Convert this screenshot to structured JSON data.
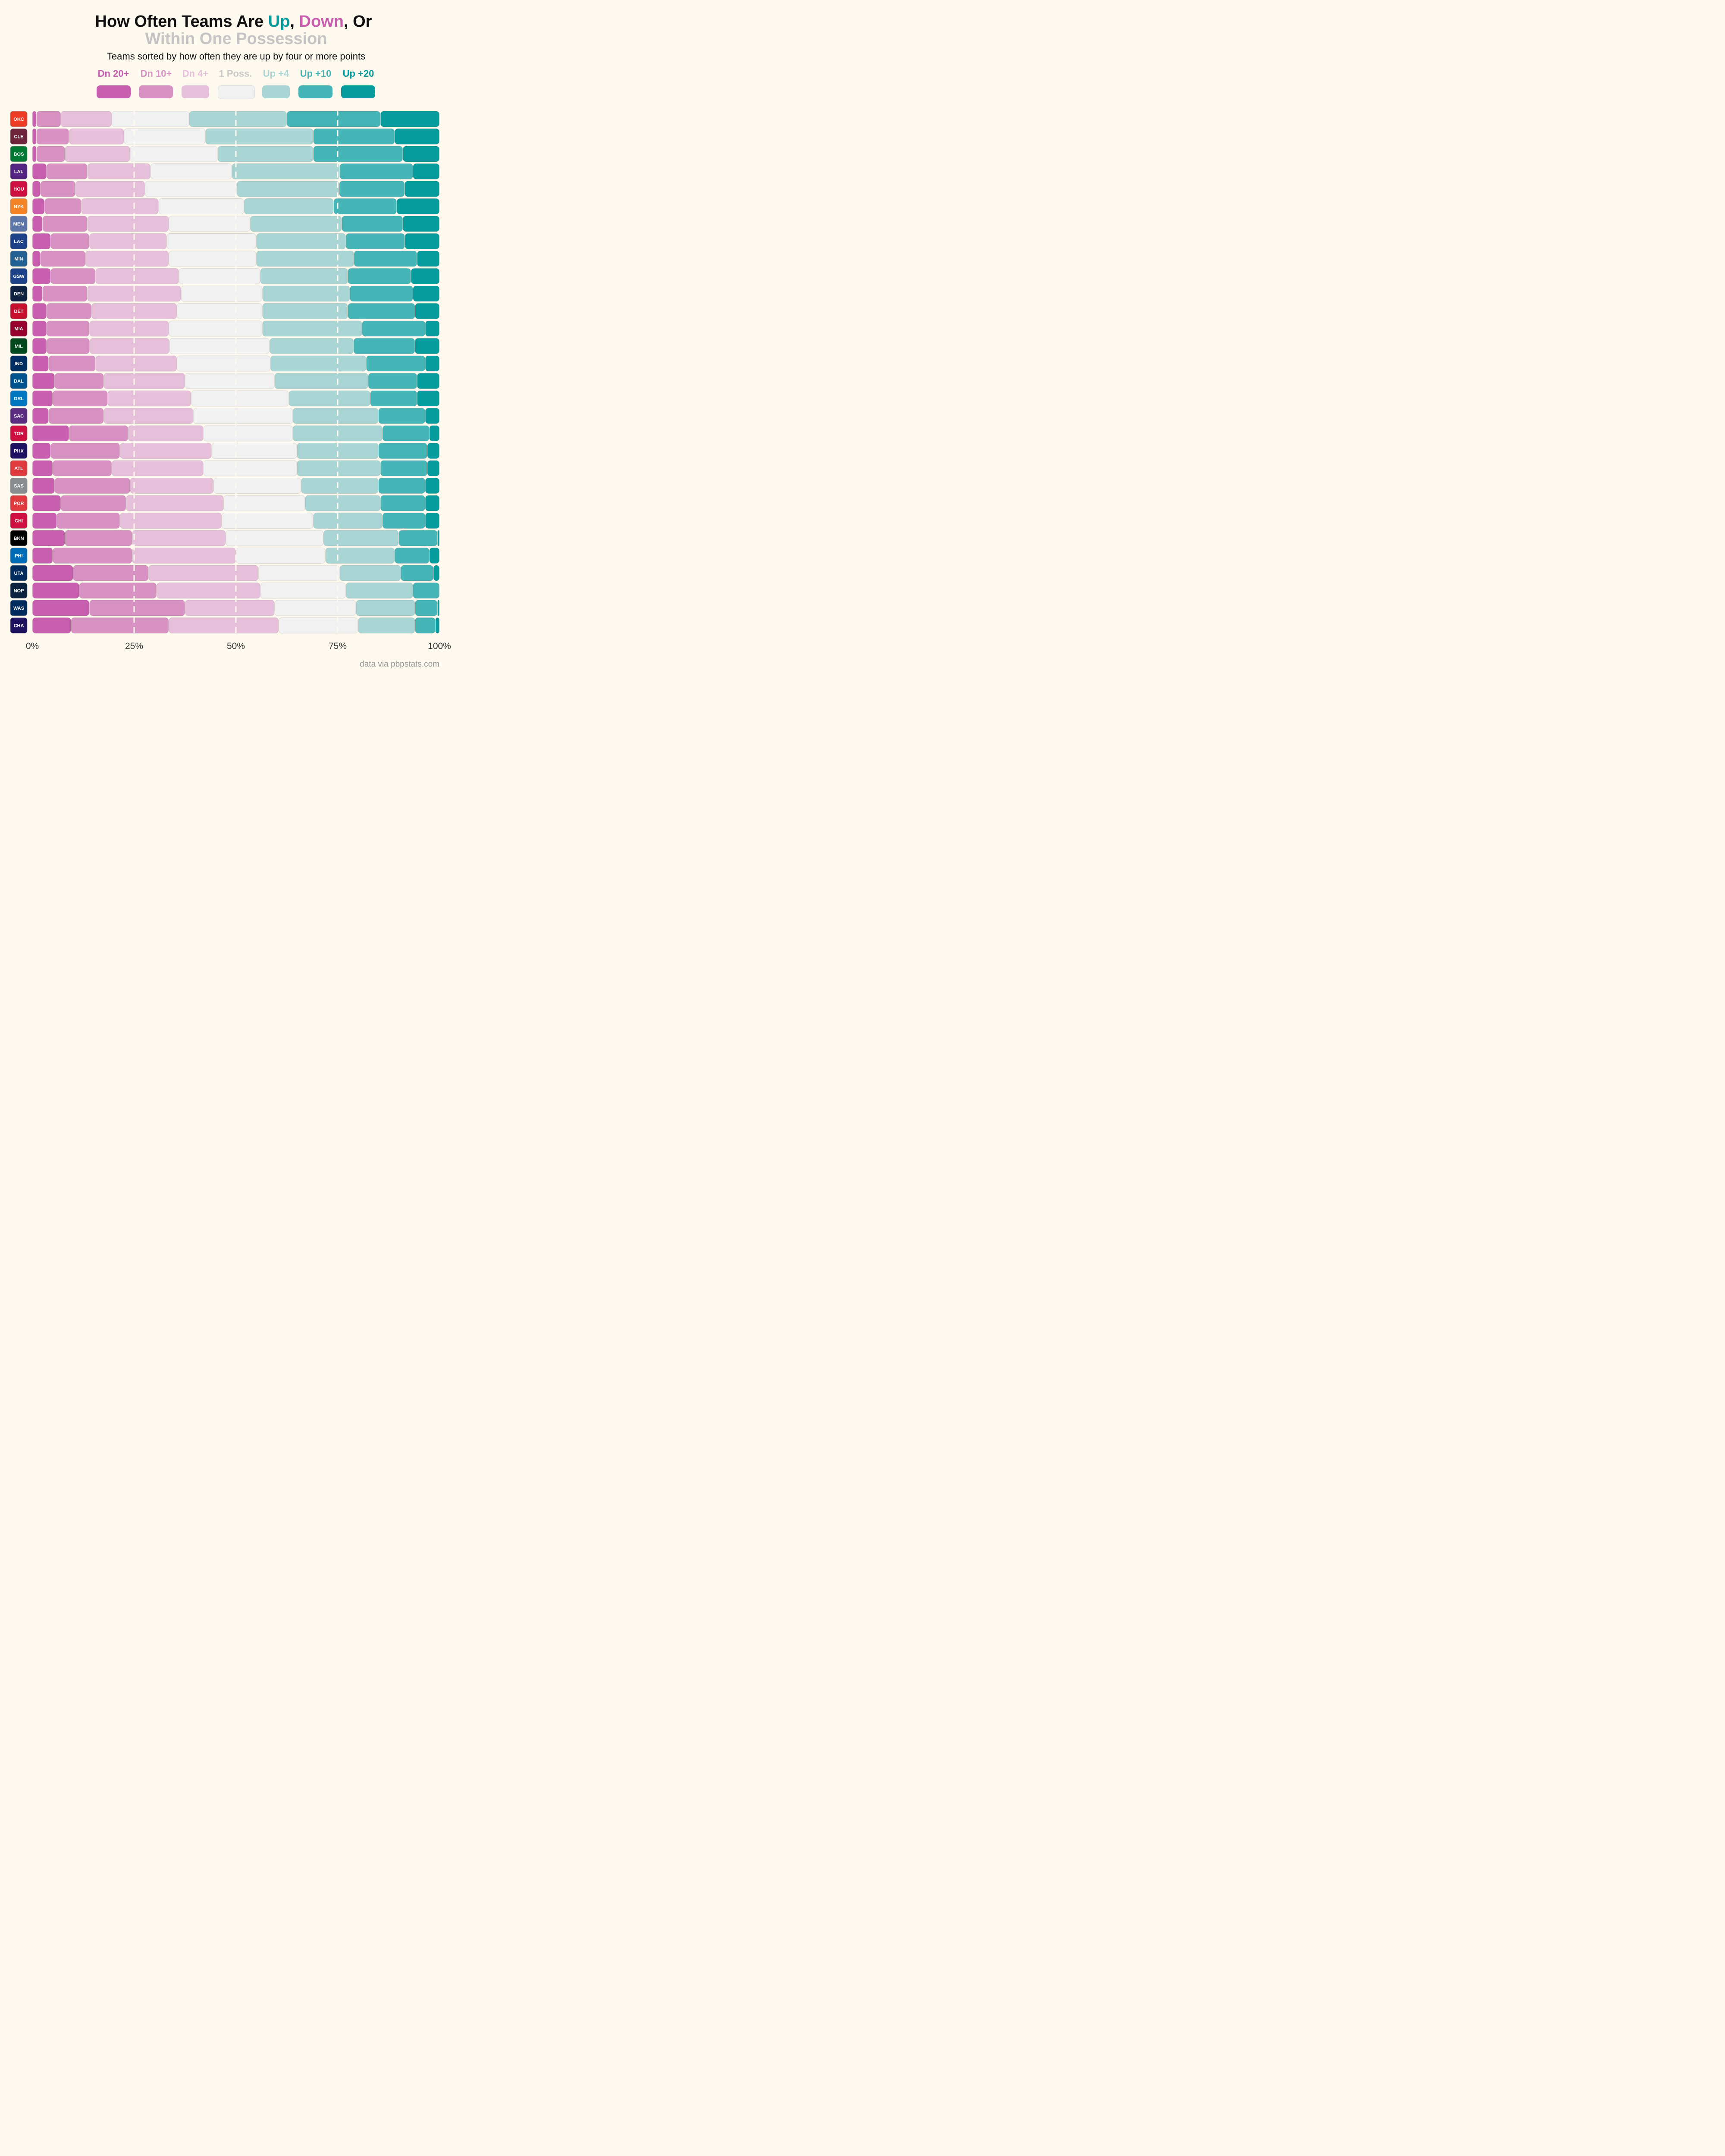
{
  "title": {
    "line1_prefix": "How Often Teams Are ",
    "up_word": "Up",
    "sep1": ", ",
    "down_word": "Down",
    "sep2": ", Or",
    "line2": "Within One Possession"
  },
  "subtitle": "Teams sorted by how often they are up by four or more points",
  "source": "data via pbpstats.com",
  "colors": {
    "dn20": "#c75fae",
    "dn10": "#d891c3",
    "dn4": "#e6c0da",
    "poss": "#f1f1f1",
    "up4": "#aad5d5",
    "up10": "#46b5b8",
    "up20": "#069b9d"
  },
  "legend": [
    {
      "label": "Dn 20+",
      "color": "#c75fae"
    },
    {
      "label": "Dn 10+",
      "color": "#d891c3"
    },
    {
      "label": "Dn 4+",
      "color": "#e6c0da"
    },
    {
      "label": "1 Poss.",
      "color": "#c8c8c8",
      "swatch": "#f1f1f1"
    },
    {
      "label": "Up +4",
      "color": "#aad5d5"
    },
    {
      "label": "Up +10",
      "color": "#46b5b8"
    },
    {
      "label": "Up +20",
      "color": "#069b9d"
    }
  ],
  "chart_data": {
    "type": "bar",
    "orientation": "horizontal",
    "stacked": true,
    "xlim": [
      0,
      100
    ],
    "x_ticks": [
      "0%",
      "25%",
      "50%",
      "75%",
      "100%"
    ],
    "segments": [
      "Dn 20+",
      "Dn 10+",
      "Dn 4+",
      "1 Poss.",
      "Up +4",
      "Up +10",
      "Up +20"
    ],
    "teams": [
      {
        "team": "OKC",
        "logo": "okc-logo-icon",
        "color": "#ef3b24",
        "values": [
          1,
          6,
          12.5,
          19,
          24,
          23,
          14.5
        ]
      },
      {
        "team": "CLE",
        "logo": "cle-logo-icon",
        "color": "#6f263d",
        "values": [
          1,
          8,
          13.5,
          20,
          26.5,
          20,
          11
        ]
      },
      {
        "team": "BOS",
        "logo": "bos-logo-icon",
        "color": "#007a33",
        "values": [
          1,
          7,
          16,
          21.5,
          23.5,
          22,
          9
        ]
      },
      {
        "team": "LAL",
        "logo": "lal-logo-icon",
        "color": "#552583",
        "values": [
          3.5,
          10,
          15.5,
          20,
          26.5,
          18,
          6.5
        ]
      },
      {
        "team": "HOU",
        "logo": "hou-logo-icon",
        "color": "#ce1141",
        "values": [
          2,
          8.5,
          17,
          22.5,
          25,
          16,
          8.5
        ]
      },
      {
        "team": "NYK",
        "logo": "nyk-logo-icon",
        "color": "#f58426",
        "values": [
          3,
          9,
          19,
          21,
          22,
          15.5,
          10.5
        ]
      },
      {
        "team": "MEM",
        "logo": "mem-logo-icon",
        "color": "#5d76a9",
        "values": [
          2.5,
          11,
          20,
          20,
          22.5,
          15,
          9
        ]
      },
      {
        "team": "LAC",
        "logo": "lac-logo-icon",
        "color": "#1d428a",
        "values": [
          4.5,
          9.5,
          19,
          22,
          22,
          14.5,
          8.5
        ]
      },
      {
        "team": "MIN",
        "logo": "min-logo-icon",
        "color": "#236192",
        "values": [
          2,
          11,
          20.5,
          21.5,
          24,
          15.5,
          5.5
        ]
      },
      {
        "team": "GSW",
        "logo": "gsw-logo-icon",
        "color": "#1d428a",
        "values": [
          4.5,
          11,
          20.5,
          20,
          21.5,
          15.5,
          7
        ]
      },
      {
        "team": "DEN",
        "logo": "den-logo-icon",
        "color": "#0e2240",
        "values": [
          2.5,
          11,
          23,
          20,
          21.5,
          15.5,
          6.5
        ]
      },
      {
        "team": "DET",
        "logo": "det-logo-icon",
        "color": "#c8102e",
        "values": [
          3.5,
          11,
          21,
          21,
          21,
          16.5,
          6
        ]
      },
      {
        "team": "MIA",
        "logo": "mia-logo-icon",
        "color": "#98002e",
        "values": [
          3.5,
          10.5,
          19.5,
          23,
          24.5,
          15.5,
          3.5
        ]
      },
      {
        "team": "MIL",
        "logo": "mil-logo-icon",
        "color": "#00471b",
        "values": [
          3.5,
          10.5,
          19.5,
          24.5,
          20.5,
          15,
          6
        ]
      },
      {
        "team": "IND",
        "logo": "ind-logo-icon",
        "color": "#002d62",
        "values": [
          4,
          11.5,
          20,
          23,
          23.5,
          14.5,
          3.5
        ]
      },
      {
        "team": "DAL",
        "logo": "dal-logo-icon",
        "color": "#00538c",
        "values": [
          5.5,
          12,
          20,
          22,
          23,
          12,
          5.5
        ]
      },
      {
        "team": "ORL",
        "logo": "orl-logo-icon",
        "color": "#0077c0",
        "values": [
          5,
          13.5,
          20.5,
          24,
          20,
          11.5,
          5.5
        ]
      },
      {
        "team": "SAC",
        "logo": "sac-logo-icon",
        "color": "#5a2d81",
        "values": [
          4,
          13.5,
          22,
          24.5,
          21,
          11.5,
          3.5
        ]
      },
      {
        "team": "TOR",
        "logo": "tor-logo-icon",
        "color": "#ce1141",
        "values": [
          9,
          14.5,
          18.5,
          22,
          22,
          11.5,
          2.5
        ]
      },
      {
        "team": "PHX",
        "logo": "phx-logo-icon",
        "color": "#1d1160",
        "values": [
          4.5,
          17,
          22.5,
          21,
          20,
          12,
          3
        ]
      },
      {
        "team": "ATL",
        "logo": "atl-logo-icon",
        "color": "#e03a3e",
        "values": [
          5,
          14.5,
          22.5,
          23,
          20.5,
          11.5,
          3
        ]
      },
      {
        "team": "SAS",
        "logo": "sas-logo-icon",
        "color": "#8a8d8f",
        "values": [
          5.5,
          18.5,
          20.5,
          21.5,
          19,
          11.5,
          3.5
        ]
      },
      {
        "team": "POR",
        "logo": "por-logo-icon",
        "color": "#e03a3e",
        "values": [
          7,
          16,
          24,
          20,
          18.5,
          11,
          3.5
        ]
      },
      {
        "team": "CHI",
        "logo": "chi-logo-icon",
        "color": "#ce1141",
        "values": [
          6,
          15.5,
          25,
          22.5,
          17,
          10.5,
          3.5
        ]
      },
      {
        "team": "BKN",
        "logo": "bkn-logo-icon",
        "color": "#000000",
        "values": [
          8,
          16.5,
          23,
          24,
          18.5,
          9.5,
          0.5
        ]
      },
      {
        "team": "PHI",
        "logo": "phi-logo-icon",
        "color": "#006bb6",
        "values": [
          5,
          19.5,
          25.5,
          22,
          17,
          8.5,
          2.5
        ]
      },
      {
        "team": "UTA",
        "logo": "uta-logo-icon",
        "color": "#002b5c",
        "values": [
          10,
          18.5,
          27,
          20,
          15,
          8,
          1.5
        ]
      },
      {
        "team": "NOP",
        "logo": "nop-logo-icon",
        "color": "#0c2340",
        "values": [
          11.5,
          19,
          25.5,
          21,
          16.5,
          6.5,
          0
        ]
      },
      {
        "team": "WAS",
        "logo": "was-logo-icon",
        "color": "#002b5c",
        "values": [
          14,
          23.5,
          22,
          20,
          14.5,
          5.5,
          0.5
        ]
      },
      {
        "team": "CHA",
        "logo": "cha-logo-icon",
        "color": "#1d1160",
        "values": [
          9.5,
          24,
          27,
          19.5,
          14,
          5,
          1
        ]
      }
    ]
  }
}
